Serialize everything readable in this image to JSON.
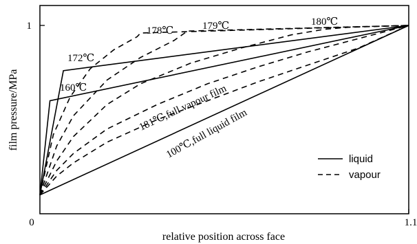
{
  "chart_data": {
    "type": "line",
    "title": "",
    "xlabel": "relative position across face",
    "ylabel": "film pressure/MPa",
    "xlim": [
      0,
      1.1
    ],
    "ylim": [
      0,
      1.1
    ],
    "x_ticks": [
      "0",
      "1.1"
    ],
    "y_ticks": [
      "1"
    ],
    "grid": false,
    "legend": {
      "position": "bottom-right",
      "entries": [
        {
          "label": "liquid",
          "style": "solid"
        },
        {
          "label": "vapour",
          "style": "dashed"
        }
      ]
    },
    "series": [
      {
        "group": "liquid",
        "style": "solid",
        "label": "100℃,full liquid film",
        "x": [
          0,
          1.1
        ],
        "y": [
          0.1,
          1.0
        ]
      },
      {
        "group": "liquid",
        "style": "solid",
        "label": "160℃",
        "x": [
          0,
          0.03,
          1.1
        ],
        "y": [
          0.1,
          0.6,
          1.0
        ]
      },
      {
        "group": "liquid",
        "style": "solid",
        "label": "172℃",
        "x": [
          0,
          0.07,
          1.1
        ],
        "y": [
          0.1,
          0.76,
          1.0
        ]
      },
      {
        "group": "vapour",
        "style": "dashed",
        "label": "178℃",
        "x": [
          0,
          0.04,
          0.09,
          0.15,
          0.22,
          0.29,
          0.3,
          1.1
        ],
        "y": [
          0.1,
          0.42,
          0.62,
          0.77,
          0.87,
          0.94,
          0.96,
          1.0
        ]
      },
      {
        "group": "vapour",
        "style": "dashed",
        "label": "179℃",
        "x": [
          0,
          0.05,
          0.1,
          0.2,
          0.3,
          0.4,
          0.44,
          1.1
        ],
        "y": [
          0.1,
          0.36,
          0.52,
          0.71,
          0.83,
          0.92,
          0.97,
          1.0
        ]
      },
      {
        "group": "vapour",
        "style": "dashed",
        "label": "180℃",
        "x": [
          0,
          0.05,
          0.1,
          0.2,
          0.3,
          0.45,
          0.6,
          0.75,
          0.85,
          0.92,
          1.1
        ],
        "y": [
          0.1,
          0.28,
          0.41,
          0.58,
          0.69,
          0.8,
          0.88,
          0.95,
          0.98,
          0.99,
          1.0
        ]
      },
      {
        "group": "vapour",
        "style": "dashed",
        "label": "181℃,full vapour film",
        "x": [
          0,
          0.05,
          0.1,
          0.2,
          0.35,
          0.5,
          0.65,
          0.8,
          0.95,
          1.1
        ],
        "y": [
          0.1,
          0.23,
          0.32,
          0.45,
          0.58,
          0.69,
          0.78,
          0.86,
          0.93,
          1.0
        ]
      },
      {
        "group": "vapour",
        "style": "dashed",
        "label": "",
        "x": [
          0,
          0.05,
          0.1,
          0.2,
          0.35,
          0.5,
          0.65,
          0.8,
          0.95,
          1.1
        ],
        "y": [
          0.1,
          0.2,
          0.27,
          0.38,
          0.5,
          0.6,
          0.7,
          0.79,
          0.88,
          1.0
        ]
      }
    ]
  }
}
